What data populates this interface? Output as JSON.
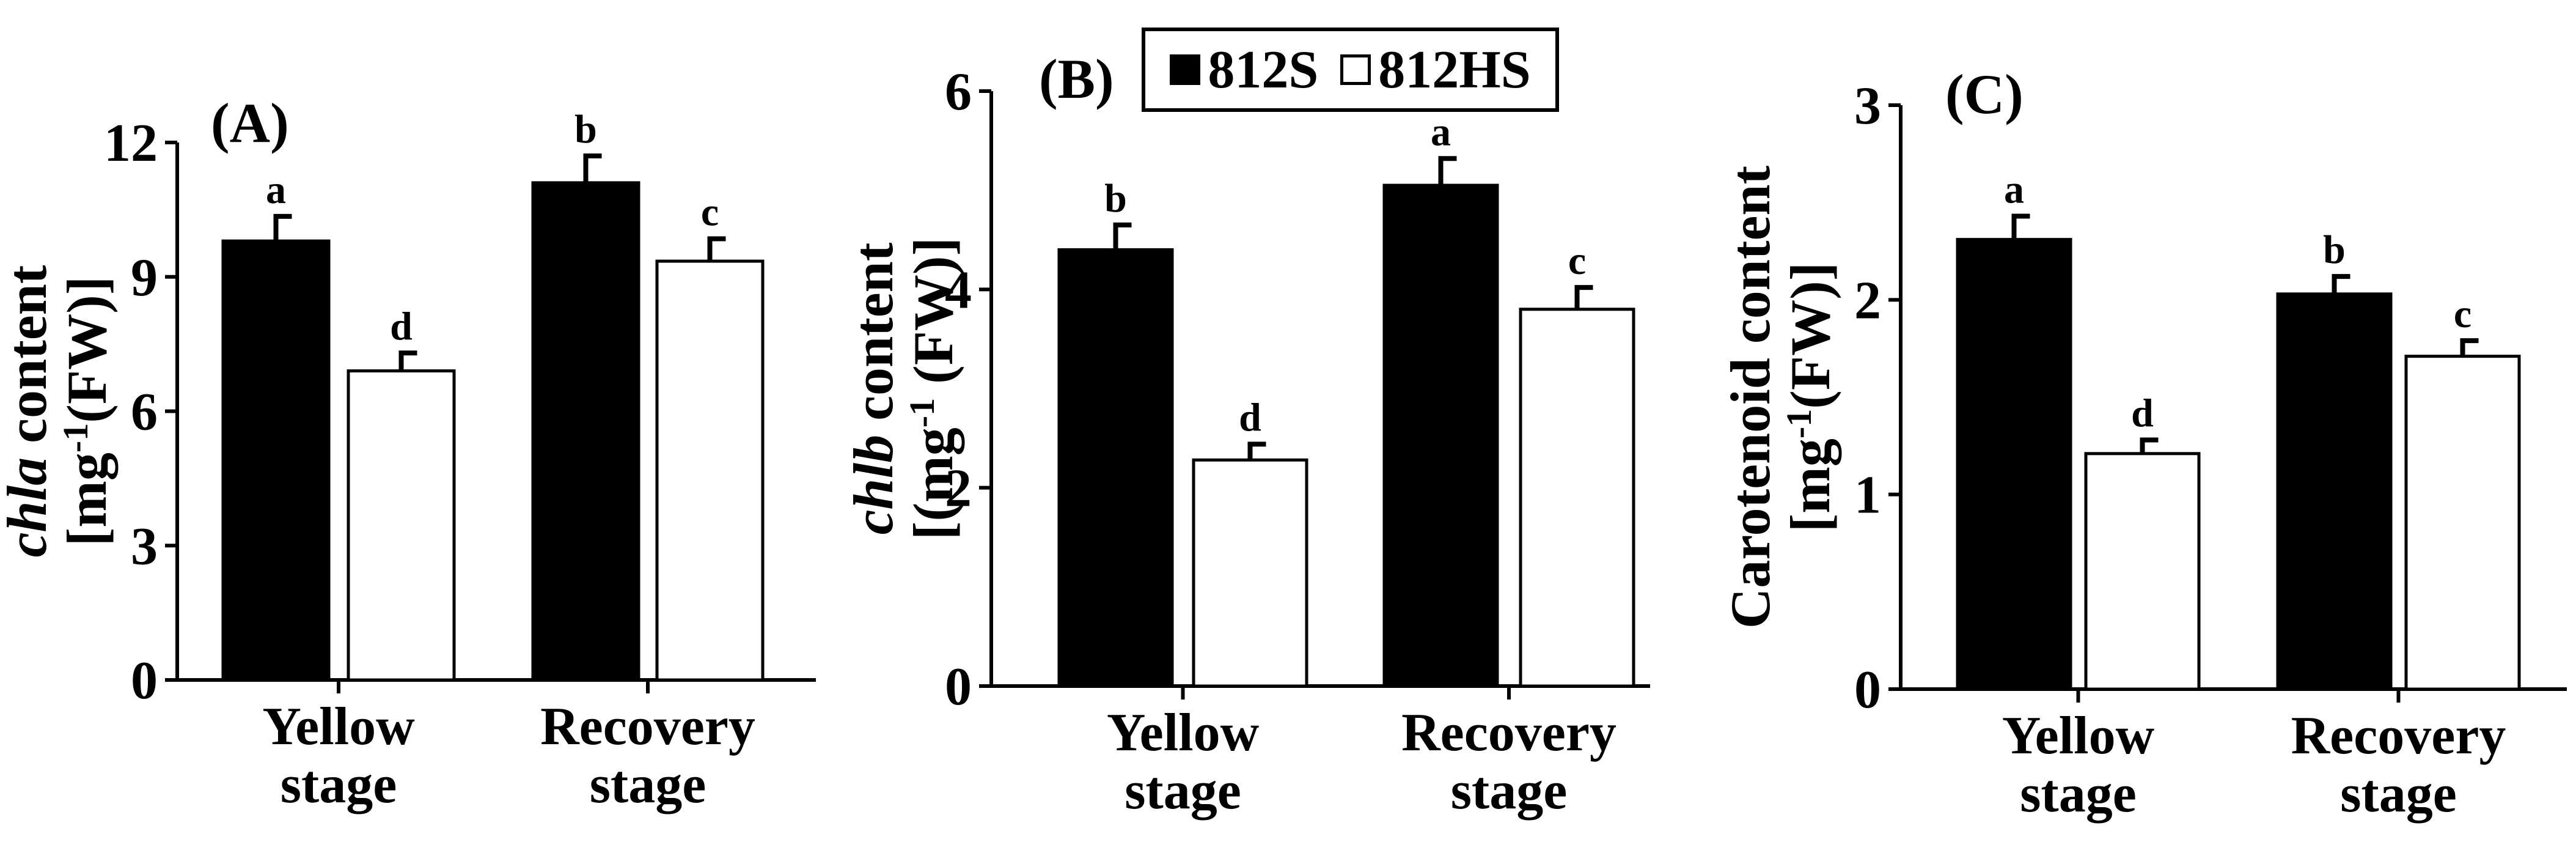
{
  "legend": {
    "items": [
      {
        "label": "812S",
        "color": "#000000"
      },
      {
        "label": "812HS",
        "color": "#ffffff"
      }
    ]
  },
  "chart_data": [
    {
      "type": "bar",
      "panel": "(A)",
      "ylabel_italic": "chla",
      "ylabel_rest": " content",
      "ylabel_unit_pre": "[mg",
      "ylabel_unit_sup": "-1",
      "ylabel_unit_post": "(FW)]",
      "categories": [
        [
          "Yellow",
          "stage"
        ],
        [
          "Recovery",
          "stage"
        ]
      ],
      "ylim": [
        0,
        12
      ],
      "yticks": [
        0,
        3,
        6,
        9,
        12
      ],
      "series": [
        {
          "name": "812S",
          "values": [
            9.8,
            11.1
          ],
          "errors": [
            0.55,
            0.6
          ],
          "letters": [
            "a",
            "b"
          ]
        },
        {
          "name": "812HS",
          "values": [
            6.9,
            9.35
          ],
          "errors": [
            0.4,
            0.5
          ],
          "letters": [
            "d",
            "c"
          ]
        }
      ]
    },
    {
      "type": "bar",
      "panel": "(B)",
      "ylabel_italic": "chlb",
      "ylabel_rest": " content",
      "ylabel_unit_pre": "[(mg",
      "ylabel_unit_sup": "-1",
      "ylabel_unit_post": " (FW)]",
      "categories": [
        [
          "Yellow",
          "stage"
        ],
        [
          "Recovery",
          "stage"
        ]
      ],
      "ylim": [
        0,
        6
      ],
      "yticks": [
        0,
        2,
        4,
        6
      ],
      "series": [
        {
          "name": "812S",
          "values": [
            4.4,
            5.05
          ],
          "errors": [
            0.25,
            0.27
          ],
          "letters": [
            "b",
            "a"
          ]
        },
        {
          "name": "812HS",
          "values": [
            2.28,
            3.8
          ],
          "errors": [
            0.16,
            0.22
          ],
          "letters": [
            "d",
            "c"
          ]
        }
      ]
    },
    {
      "type": "bar",
      "panel": "(C)",
      "ylabel_italic": "",
      "ylabel_rest": "Carotenoid content",
      "ylabel_unit_pre": "[mg",
      "ylabel_unit_sup": "-1",
      "ylabel_unit_post": "(FW)]",
      "categories": [
        [
          "Yellow",
          "stage"
        ],
        [
          "Recovery",
          "stage"
        ]
      ],
      "ylim": [
        0,
        3
      ],
      "yticks": [
        0,
        1,
        2,
        3
      ],
      "series": [
        {
          "name": "812S",
          "values": [
            2.31,
            2.03
          ],
          "errors": [
            0.12,
            0.09
          ],
          "letters": [
            "a",
            "b"
          ]
        },
        {
          "name": "812HS",
          "values": [
            1.21,
            1.71
          ],
          "errors": [
            0.07,
            0.08
          ],
          "letters": [
            "d",
            "c"
          ]
        }
      ]
    }
  ]
}
